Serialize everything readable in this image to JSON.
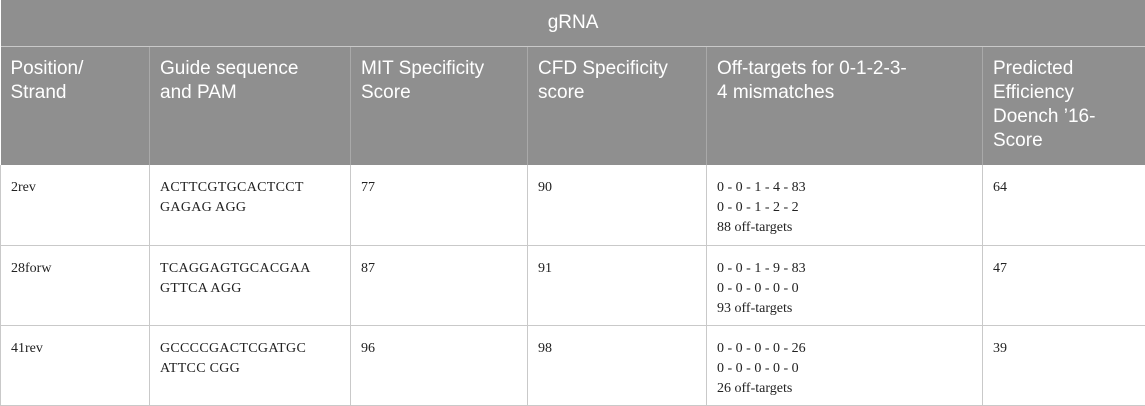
{
  "table": {
    "caption": "gRNA",
    "headers": [
      [
        "Position/",
        "Strand"
      ],
      [
        "Guide sequence",
        "and PAM"
      ],
      [
        "MIT Specificity",
        "Score"
      ],
      [
        "CFD Specificity",
        "score"
      ],
      [
        "Off-targets for 0-1-2-3-",
        "4 mismatches"
      ],
      [
        "Predicted",
        "Efficiency",
        "Doench ’16-",
        "Score"
      ]
    ],
    "rows": [
      {
        "position": "2rev",
        "sequence": [
          "ACTTCGTGCACTCCT",
          "GAGAG AGG"
        ],
        "mit": "77",
        "cfd": "90",
        "offtargets": [
          "0 - 0 - 1 - 4 - 83",
          "0 - 0 - 1 - 2 - 2",
          "88 off-targets"
        ],
        "efficiency": "64"
      },
      {
        "position": "28forw",
        "sequence": [
          "TCAGGAGTGCACGAA",
          "GTTCA AGG"
        ],
        "mit": "87",
        "cfd": "91",
        "offtargets": [
          "0 - 0 - 1 - 9 - 83",
          "0 - 0 - 0 - 0 - 0",
          "93 off-targets"
        ],
        "efficiency": "47"
      },
      {
        "position": "41rev",
        "sequence": [
          "GCCCCGACTCGATGC",
          "ATTCC CGG"
        ],
        "mit": "96",
        "cfd": "98",
        "offtargets": [
          "0 - 0 - 0 - 0 - 26",
          "0 - 0 - 0 - 0 - 0",
          "26 off-targets"
        ],
        "efficiency": "39"
      }
    ]
  },
  "colors": {
    "header_bg": "#8f8f8f",
    "header_text": "#ffffff",
    "border": "#c9c9c9"
  }
}
